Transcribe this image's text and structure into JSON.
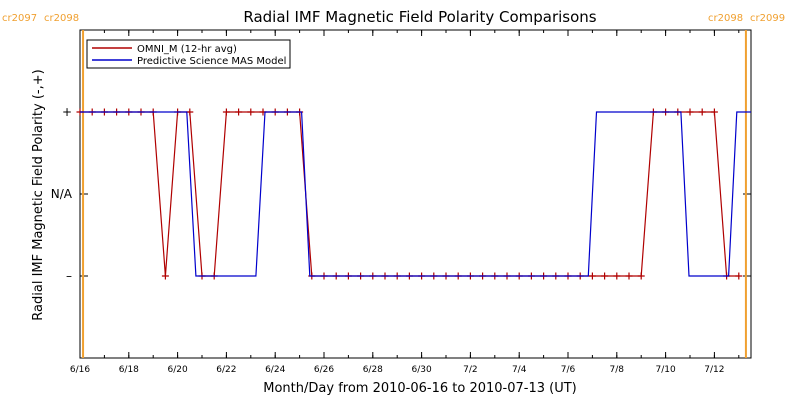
{
  "chart_data": {
    "type": "line",
    "title": "Radial IMF Magnetic Field Polarity Comparisons",
    "xlabel": "Month/Day from 2010-06-16 to 2010-07-13 (UT)",
    "ylabel": "Radial IMF Magnetic Field Polarity (-,+)",
    "xlim": [
      "2010-06-16T00:00",
      "2010-07-13T12:00"
    ],
    "ylim": [
      -2,
      2
    ],
    "y_ticks": [
      {
        "value": 1,
        "label": "+"
      },
      {
        "value": 0,
        "label": "N/A"
      },
      {
        "value": -1,
        "label": "–"
      }
    ],
    "x_ticks": [
      {
        "value": "2010-06-16",
        "label": "6/16"
      },
      {
        "value": "2010-06-18",
        "label": "6/18"
      },
      {
        "value": "2010-06-20",
        "label": "6/20"
      },
      {
        "value": "2010-06-22",
        "label": "6/22"
      },
      {
        "value": "2010-06-24",
        "label": "6/24"
      },
      {
        "value": "2010-06-26",
        "label": "6/26"
      },
      {
        "value": "2010-06-28",
        "label": "6/28"
      },
      {
        "value": "2010-06-30",
        "label": "6/30"
      },
      {
        "value": "2010-07-02",
        "label": "7/2"
      },
      {
        "value": "2010-07-04",
        "label": "7/4"
      },
      {
        "value": "2010-07-06",
        "label": "7/6"
      },
      {
        "value": "2010-07-08",
        "label": "7/8"
      },
      {
        "value": "2010-07-10",
        "label": "7/10"
      },
      {
        "value": "2010-07-12",
        "label": "7/12"
      }
    ],
    "carrington_markers": [
      {
        "x": "2010-06-16T03:00",
        "left_label": "cr2097",
        "right_label": "cr2098",
        "position": "top-left"
      },
      {
        "x": "2010-07-13T07:00",
        "left_label": "cr2098",
        "right_label": "cr2099",
        "position": "top-right"
      }
    ],
    "legend_position": "top-left",
    "series": [
      {
        "name": "OMNI_M (12-hr avg)",
        "color": "#b00000",
        "markers": true,
        "x": [
          "2010-06-16T00:00",
          "2010-06-16T12:00",
          "2010-06-17T00:00",
          "2010-06-17T12:00",
          "2010-06-18T00:00",
          "2010-06-18T12:00",
          "2010-06-19T00:00",
          "2010-06-19T12:00",
          "2010-06-20T00:00",
          "2010-06-20T12:00",
          "2010-06-21T00:00",
          "2010-06-21T12:00",
          "2010-06-22T00:00",
          "2010-06-22T12:00",
          "2010-06-23T00:00",
          "2010-06-23T12:00",
          "2010-06-24T00:00",
          "2010-06-24T12:00",
          "2010-06-25T00:00",
          "2010-06-25T12:00",
          "2010-06-26T00:00",
          "2010-06-26T12:00",
          "2010-06-27T00:00",
          "2010-06-27T12:00",
          "2010-06-28T00:00",
          "2010-06-28T12:00",
          "2010-06-29T00:00",
          "2010-06-29T12:00",
          "2010-06-30T00:00",
          "2010-06-30T12:00",
          "2010-07-01T00:00",
          "2010-07-01T12:00",
          "2010-07-02T00:00",
          "2010-07-02T12:00",
          "2010-07-03T00:00",
          "2010-07-03T12:00",
          "2010-07-04T00:00",
          "2010-07-04T12:00",
          "2010-07-05T00:00",
          "2010-07-05T12:00",
          "2010-07-06T00:00",
          "2010-07-06T12:00",
          "2010-07-07T00:00",
          "2010-07-07T12:00",
          "2010-07-08T00:00",
          "2010-07-08T12:00",
          "2010-07-09T00:00",
          "2010-07-09T12:00",
          "2010-07-10T00:00",
          "2010-07-10T12:00",
          "2010-07-11T00:00",
          "2010-07-11T12:00",
          "2010-07-12T00:00",
          "2010-07-12T12:00",
          "2010-07-13T00:00"
        ],
        "y": [
          1,
          1,
          1,
          1,
          1,
          1,
          1,
          -1,
          1,
          1,
          -1,
          -1,
          1,
          1,
          1,
          1,
          1,
          1,
          1,
          -1,
          -1,
          -1,
          -1,
          -1,
          -1,
          -1,
          -1,
          -1,
          -1,
          -1,
          -1,
          -1,
          -1,
          -1,
          -1,
          -1,
          -1,
          -1,
          -1,
          -1,
          -1,
          -1,
          -1,
          -1,
          -1,
          -1,
          -1,
          1,
          1,
          1,
          1,
          1,
          1,
          -1,
          -1
        ]
      },
      {
        "name": "Predictive Science MAS Model",
        "color": "#0000cc",
        "markers": false,
        "x": [
          "2010-06-16T00:00",
          "2010-06-20T09:00",
          "2010-06-20T18:00",
          "2010-06-23T05:00",
          "2010-06-23T14:00",
          "2010-06-25T02:00",
          "2010-06-25T10:00",
          "2010-07-06T20:00",
          "2010-07-07T04:00",
          "2010-07-10T15:00",
          "2010-07-10T23:00",
          "2010-07-12T14:00",
          "2010-07-12T22:00",
          "2010-07-13T12:00"
        ],
        "y": [
          1,
          1,
          -1,
          -1,
          1,
          1,
          -1,
          -1,
          1,
          1,
          -1,
          -1,
          1,
          1
        ]
      }
    ]
  }
}
